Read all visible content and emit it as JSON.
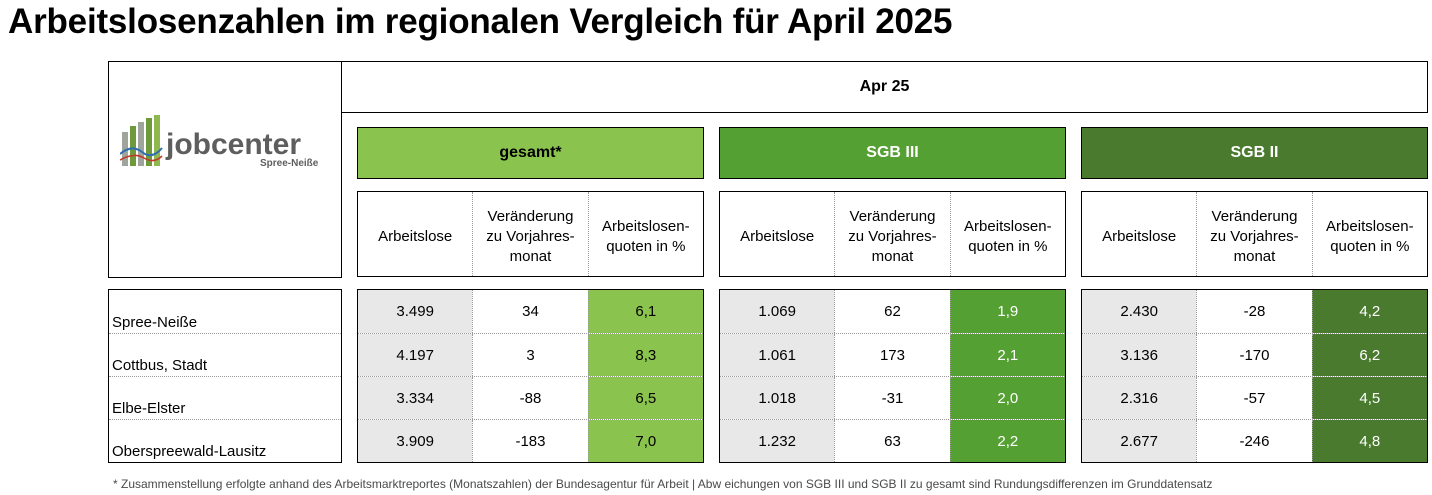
{
  "title": "Arbeitslosenzahlen im regionalen Vergleich für April 2025",
  "logo": {
    "word": "jobcenter",
    "sub": "Spree-Neiße"
  },
  "period": "Apr 25",
  "groups": [
    {
      "label": "gesamt*",
      "color": "#8bc34f"
    },
    {
      "label": "SGB III",
      "color": "#55a032"
    },
    {
      "label": "SGB II",
      "color": "#497a2e"
    }
  ],
  "columns": [
    "Arbeitslose",
    "Veränderung zu Vorjahres-monat",
    "Arbeitslosen-quoten in %"
  ],
  "columns_display": [
    [
      "Arbeitslose"
    ],
    [
      "Veränderung",
      "zu Vorjahres-",
      "monat"
    ],
    [
      "Arbeitslosen-",
      "quoten in %"
    ]
  ],
  "regions": [
    "Spree-Neiße",
    "Cottbus, Stadt",
    "Elbe-Elster",
    "Oberspreewald-Lausitz"
  ],
  "data": [
    [
      [
        "3.499",
        "34",
        "6,1"
      ],
      [
        "4.197",
        "3",
        "8,3"
      ],
      [
        "3.334",
        "-88",
        "6,5"
      ],
      [
        "3.909",
        "-183",
        "7,0"
      ]
    ],
    [
      [
        "1.069",
        "62",
        "1,9"
      ],
      [
        "1.061",
        "173",
        "2,1"
      ],
      [
        "1.018",
        "-31",
        "2,0"
      ],
      [
        "1.232",
        "63",
        "2,2"
      ]
    ],
    [
      [
        "2.430",
        "-28",
        "4,2"
      ],
      [
        "3.136",
        "-170",
        "6,2"
      ],
      [
        "2.316",
        "-57",
        "4,5"
      ],
      [
        "2.677",
        "-246",
        "4,8"
      ]
    ]
  ],
  "footnote": "* Zusammenstellung erfolgte anhand des Arbeitsmarktreportes (Monatszahlen) der Bundesagentur für Arbeit | Abw eichungen von SGB III und SGB II zu gesamt sind Rundungsdifferenzen im Grunddatensatz"
}
